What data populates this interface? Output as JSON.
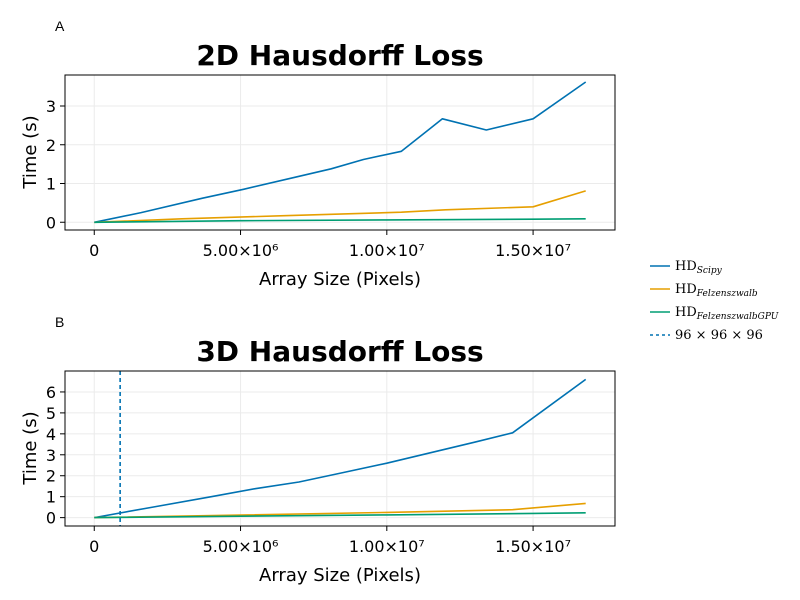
{
  "legend": {
    "entries": [
      {
        "main": "HD",
        "sub": "Scipy",
        "color": "#0072b2",
        "dash": false
      },
      {
        "main": "HD",
        "sub": "Felzenszwalb",
        "color": "#e69f00",
        "dash": false
      },
      {
        "main": "HD",
        "sub": "FelzenszwalbGPU",
        "color": "#009e73",
        "dash": false
      },
      {
        "main": "96 × 96 × 96",
        "sub": "",
        "color": "#0072b2",
        "dash": true
      }
    ]
  },
  "chart_data": [
    {
      "type": "line",
      "panel_label": "A",
      "title": "2D Hausdorff Loss",
      "xlabel": "Array Size (Pixels)",
      "ylabel": "Time (s)",
      "xlim": [
        -1000000,
        17800000
      ],
      "ylim": [
        -0.2,
        3.8
      ],
      "xticks": [
        0,
        5000000,
        10000000,
        15000000
      ],
      "xtick_labels": [
        "0",
        "5.00×10⁶",
        "1.00×10⁷",
        "1.50×10⁷"
      ],
      "yticks": [
        0,
        1,
        2,
        3
      ],
      "ytick_labels": [
        "0",
        "1",
        "2",
        "3"
      ],
      "grid": true,
      "series": [
        {
          "name": "HD_Scipy",
          "color": "#0072b2",
          "x": [
            0,
            1600000,
            3700000,
            5100000,
            6800000,
            8100000,
            9200000,
            10500000,
            11900000,
            13400000,
            15000000,
            16800000
          ],
          "y": [
            0.0,
            0.25,
            0.62,
            0.85,
            1.15,
            1.38,
            1.62,
            1.83,
            2.67,
            2.38,
            2.67,
            3.62
          ]
        },
        {
          "name": "HD_Felzenszwalb",
          "color": "#e69f00",
          "x": [
            0,
            3000000,
            6500000,
            10500000,
            12000000,
            15000000,
            16800000
          ],
          "y": [
            0.0,
            0.09,
            0.17,
            0.26,
            0.32,
            0.4,
            0.81
          ]
        },
        {
          "name": "HD_FelzenszwalbGPU",
          "color": "#009e73",
          "x": [
            0,
            5000000,
            10000000,
            15000000,
            16800000
          ],
          "y": [
            0.0,
            0.04,
            0.06,
            0.08,
            0.09
          ]
        }
      ]
    },
    {
      "type": "line",
      "panel_label": "B",
      "title": "3D Hausdorff Loss",
      "xlabel": "Array Size (Pixels)",
      "ylabel": "Time (s)",
      "xlim": [
        -1000000,
        17800000
      ],
      "ylim": [
        -0.4,
        7.0
      ],
      "xticks": [
        0,
        5000000,
        10000000,
        15000000
      ],
      "xtick_labels": [
        "0",
        "5.00×10⁶",
        "1.00×10⁷",
        "1.50×10⁷"
      ],
      "yticks": [
        0,
        1,
        2,
        3,
        4,
        5,
        6
      ],
      "ytick_labels": [
        "0",
        "1",
        "2",
        "3",
        "4",
        "5",
        "6"
      ],
      "grid": true,
      "vline": {
        "x": 884736,
        "color": "#0072b2",
        "name": "96 × 96 × 96"
      },
      "series": [
        {
          "name": "HD_Scipy",
          "color": "#0072b2",
          "x": [
            0,
            2000000,
            4000000,
            5500000,
            7000000,
            8500000,
            10000000,
            11500000,
            13000000,
            14300000,
            16800000
          ],
          "y": [
            0.0,
            0.5,
            1.0,
            1.38,
            1.7,
            2.15,
            2.6,
            3.1,
            3.6,
            4.05,
            6.6
          ]
        },
        {
          "name": "HD_Felzenszwalb",
          "color": "#e69f00",
          "x": [
            0,
            5000000,
            10000000,
            14300000,
            16800000
          ],
          "y": [
            0.0,
            0.12,
            0.25,
            0.38,
            0.68
          ]
        },
        {
          "name": "HD_FelzenszwalbGPU",
          "color": "#009e73",
          "x": [
            0,
            5000000,
            10000000,
            15000000,
            16800000
          ],
          "y": [
            0.0,
            0.07,
            0.13,
            0.2,
            0.23
          ]
        }
      ]
    }
  ]
}
